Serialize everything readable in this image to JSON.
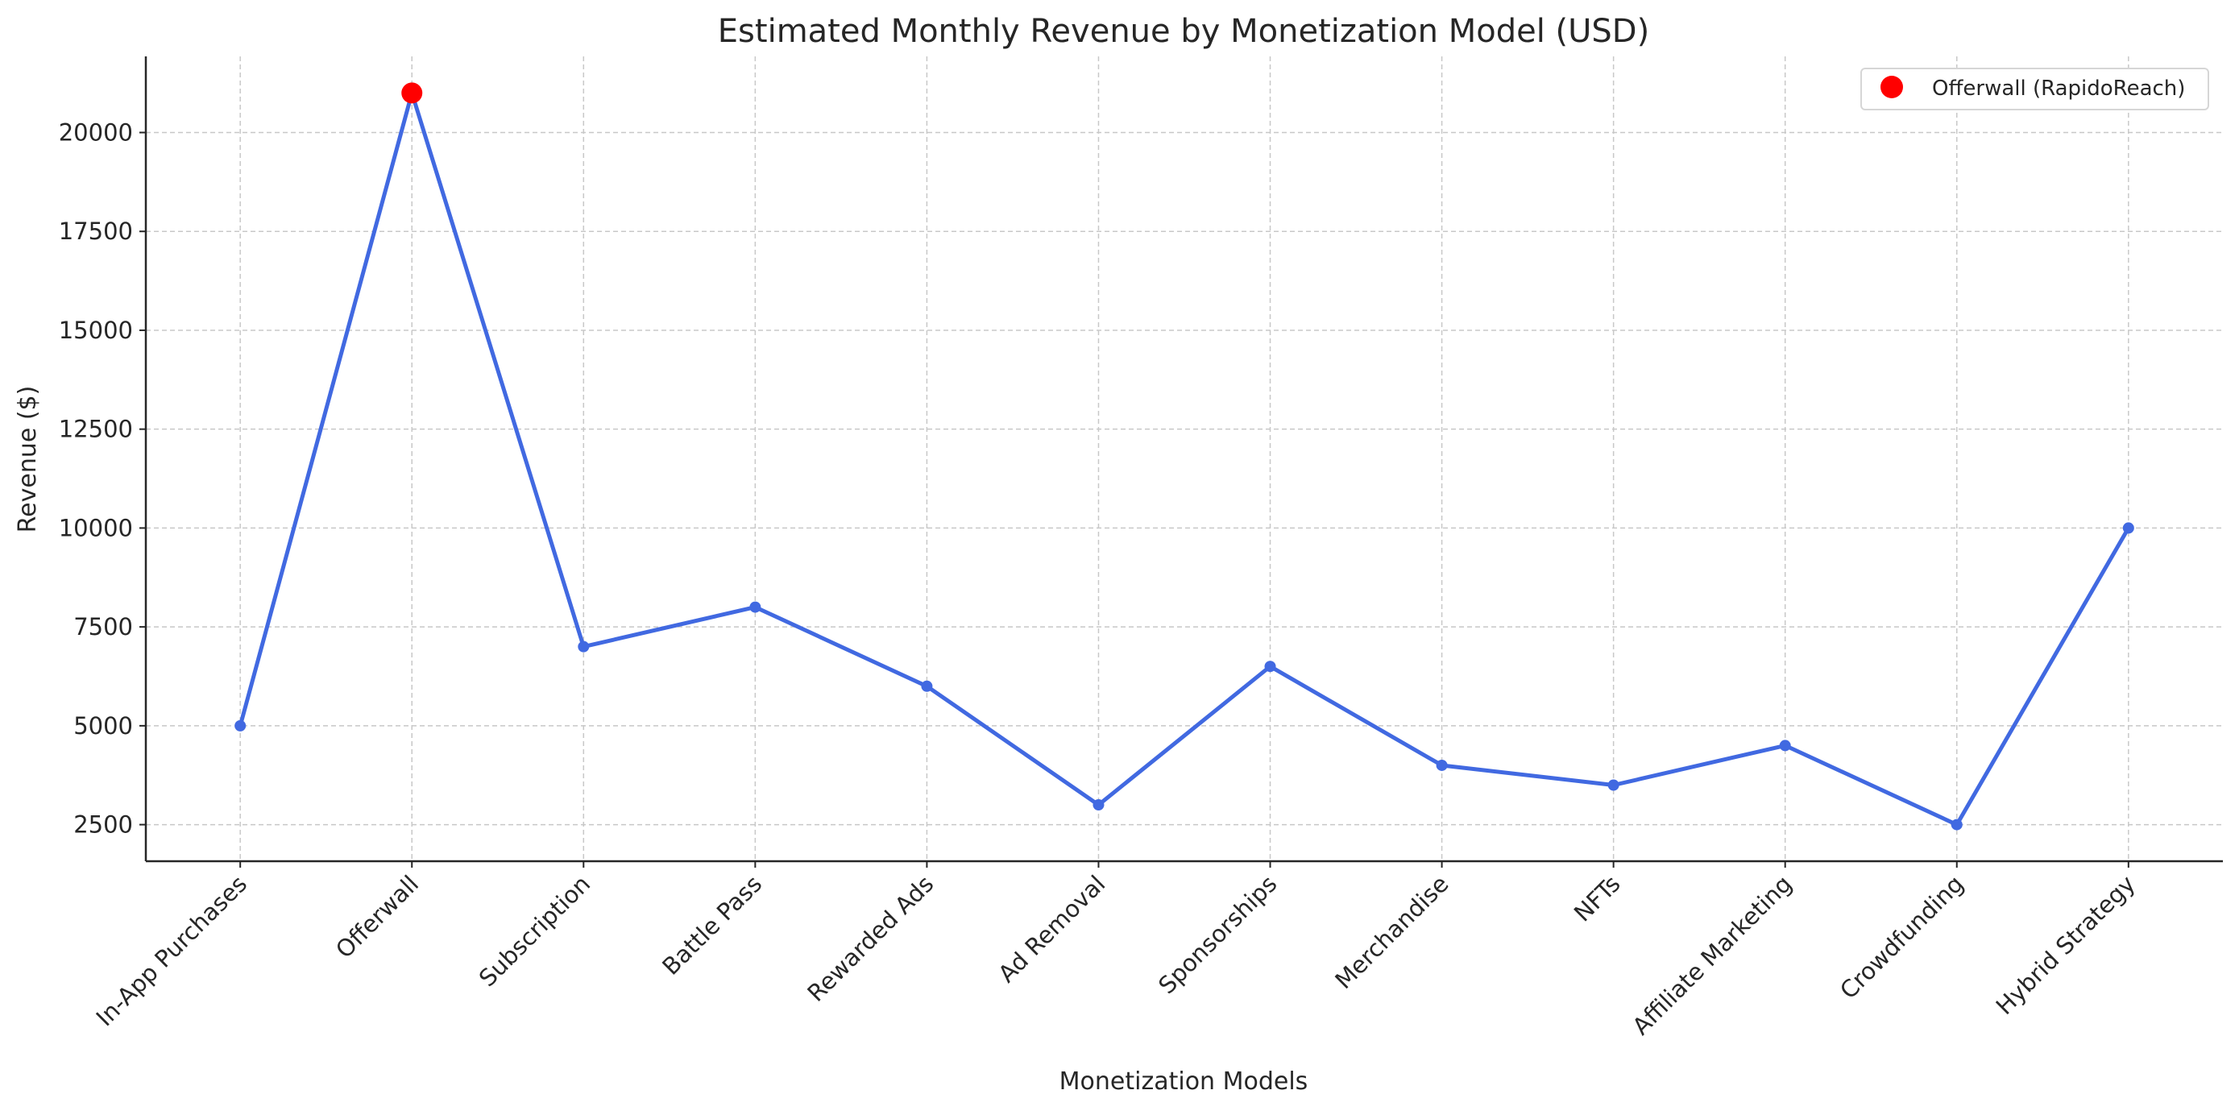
{
  "chart_data": {
    "type": "line",
    "title": "Estimated Monthly Revenue by Monetization Model (USD)",
    "xlabel": "Monetization Models",
    "ylabel": "Revenue ($)",
    "categories": [
      "In-App Purchases",
      "Offerwall",
      "Subscription",
      "Battle Pass",
      "Rewarded Ads",
      "Ad Removal",
      "Sponsorships",
      "Merchandise",
      "NFTs",
      "Affiliate Marketing",
      "Crowdfunding",
      "Hybrid Strategy"
    ],
    "series": [
      {
        "values": [
          5000,
          21000,
          7000,
          8000,
          6000,
          3000,
          6500,
          4000,
          3500,
          4500,
          2500,
          10000
        ],
        "color": "#4169e1"
      }
    ],
    "highlight": {
      "name": "Offerwall (RapidoReach)",
      "category": "Offerwall",
      "value": 21000,
      "color": "#ff0000"
    },
    "yticks": [
      2500,
      5000,
      7500,
      10000,
      12500,
      15000,
      17500,
      20000
    ],
    "ylim": [
      1575,
      21925
    ],
    "grid": true,
    "grid_style": "dashed",
    "legend": {
      "placement": "top-right",
      "entries": [
        "Offerwall (RapidoReach)"
      ]
    }
  }
}
